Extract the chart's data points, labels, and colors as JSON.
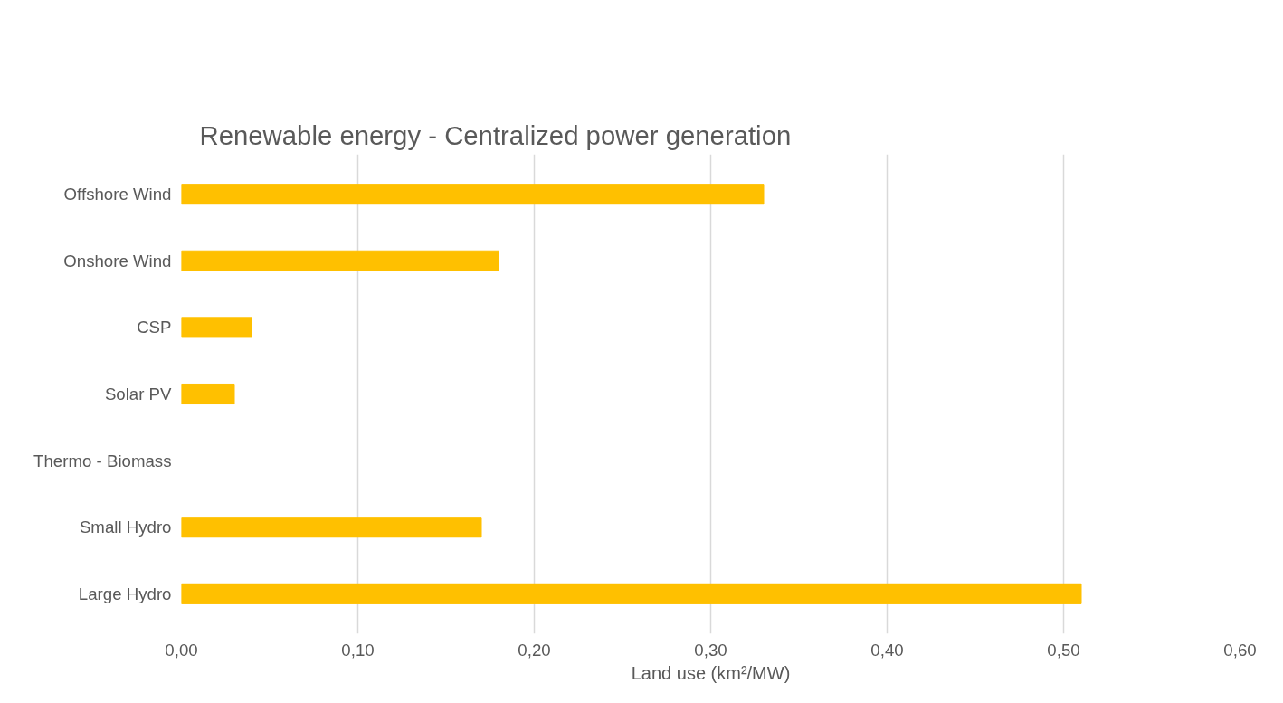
{
  "chart_data": {
    "type": "bar",
    "orientation": "horizontal",
    "title": "Renewable energy - Centralized power generation",
    "xlabel": "Land use (km²/MW)",
    "categories": [
      "Offshore Wind",
      "Onshore Wind",
      "CSP",
      "Solar PV",
      "Thermo - Biomass",
      "Small Hydro",
      "Large Hydro"
    ],
    "values": [
      0.33,
      0.18,
      0.04,
      0.03,
      null,
      0.17,
      0.51
    ],
    "color": "#ffc000",
    "xlim": [
      0,
      0.6
    ],
    "xticks": [
      {
        "value": 0,
        "label": "0,00"
      },
      {
        "value": 0.1,
        "label": "0,10"
      },
      {
        "value": 0.2,
        "label": "0,20"
      },
      {
        "value": 0.3,
        "label": "0,30"
      },
      {
        "value": 0.4,
        "label": "0,40"
      },
      {
        "value": 0.5,
        "label": "0,50"
      },
      {
        "value": 0.6,
        "label": "0,60"
      }
    ],
    "grid": "x"
  }
}
